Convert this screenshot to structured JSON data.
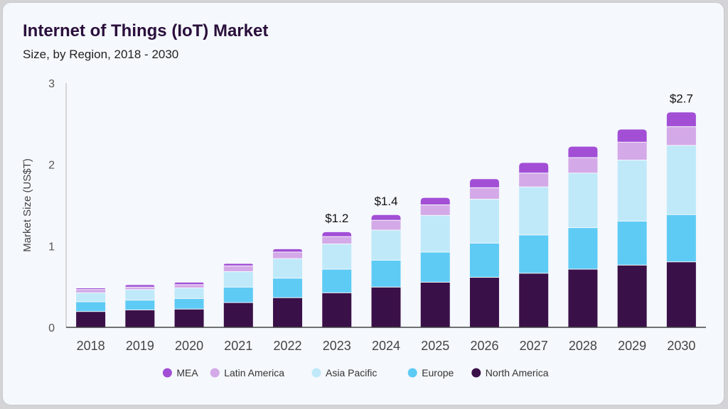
{
  "chart_data": {
    "type": "bar",
    "stacked": true,
    "title": "Internet of Things (IoT) Market",
    "subtitle": "Size, by Region, 2018 - 2030",
    "xlabel": "",
    "ylabel": "Market Size (US$T)",
    "ylim": [
      0,
      3
    ],
    "yticks": [
      0,
      1,
      2,
      3
    ],
    "grid": false,
    "legend_placement": "bottom",
    "categories": [
      "2018",
      "2019",
      "2020",
      "2021",
      "2022",
      "2023",
      "2024",
      "2025",
      "2026",
      "2027",
      "2028",
      "2029",
      "2030"
    ],
    "series": [
      {
        "name": "North America",
        "color": "#3a1049",
        "values": [
          0.19,
          0.21,
          0.22,
          0.3,
          0.36,
          0.42,
          0.49,
          0.55,
          0.61,
          0.66,
          0.71,
          0.76,
          0.8
        ]
      },
      {
        "name": "Europe",
        "color": "#5ecbf5",
        "values": [
          0.12,
          0.12,
          0.13,
          0.19,
          0.24,
          0.29,
          0.33,
          0.37,
          0.42,
          0.47,
          0.51,
          0.54,
          0.58
        ]
      },
      {
        "name": "Asia Pacific",
        "color": "#bfe9f9",
        "values": [
          0.11,
          0.13,
          0.13,
          0.19,
          0.24,
          0.31,
          0.37,
          0.45,
          0.54,
          0.59,
          0.67,
          0.75,
          0.85
        ]
      },
      {
        "name": "Latin America",
        "color": "#d4a9e8",
        "values": [
          0.04,
          0.03,
          0.04,
          0.07,
          0.08,
          0.09,
          0.12,
          0.13,
          0.14,
          0.17,
          0.19,
          0.22,
          0.23
        ]
      },
      {
        "name": "MEA",
        "color": "#a24fd6",
        "values": [
          0.02,
          0.03,
          0.03,
          0.03,
          0.04,
          0.06,
          0.07,
          0.09,
          0.11,
          0.13,
          0.14,
          0.16,
          0.18
        ]
      }
    ],
    "legend_order": [
      "MEA",
      "Latin America",
      "Asia Pacific",
      "Europe",
      "North America"
    ],
    "annotations": [
      {
        "category": "2023",
        "text": "$1.2"
      },
      {
        "category": "2024",
        "text": "$1.4"
      },
      {
        "category": "2030",
        "text": "$2.7"
      }
    ]
  }
}
